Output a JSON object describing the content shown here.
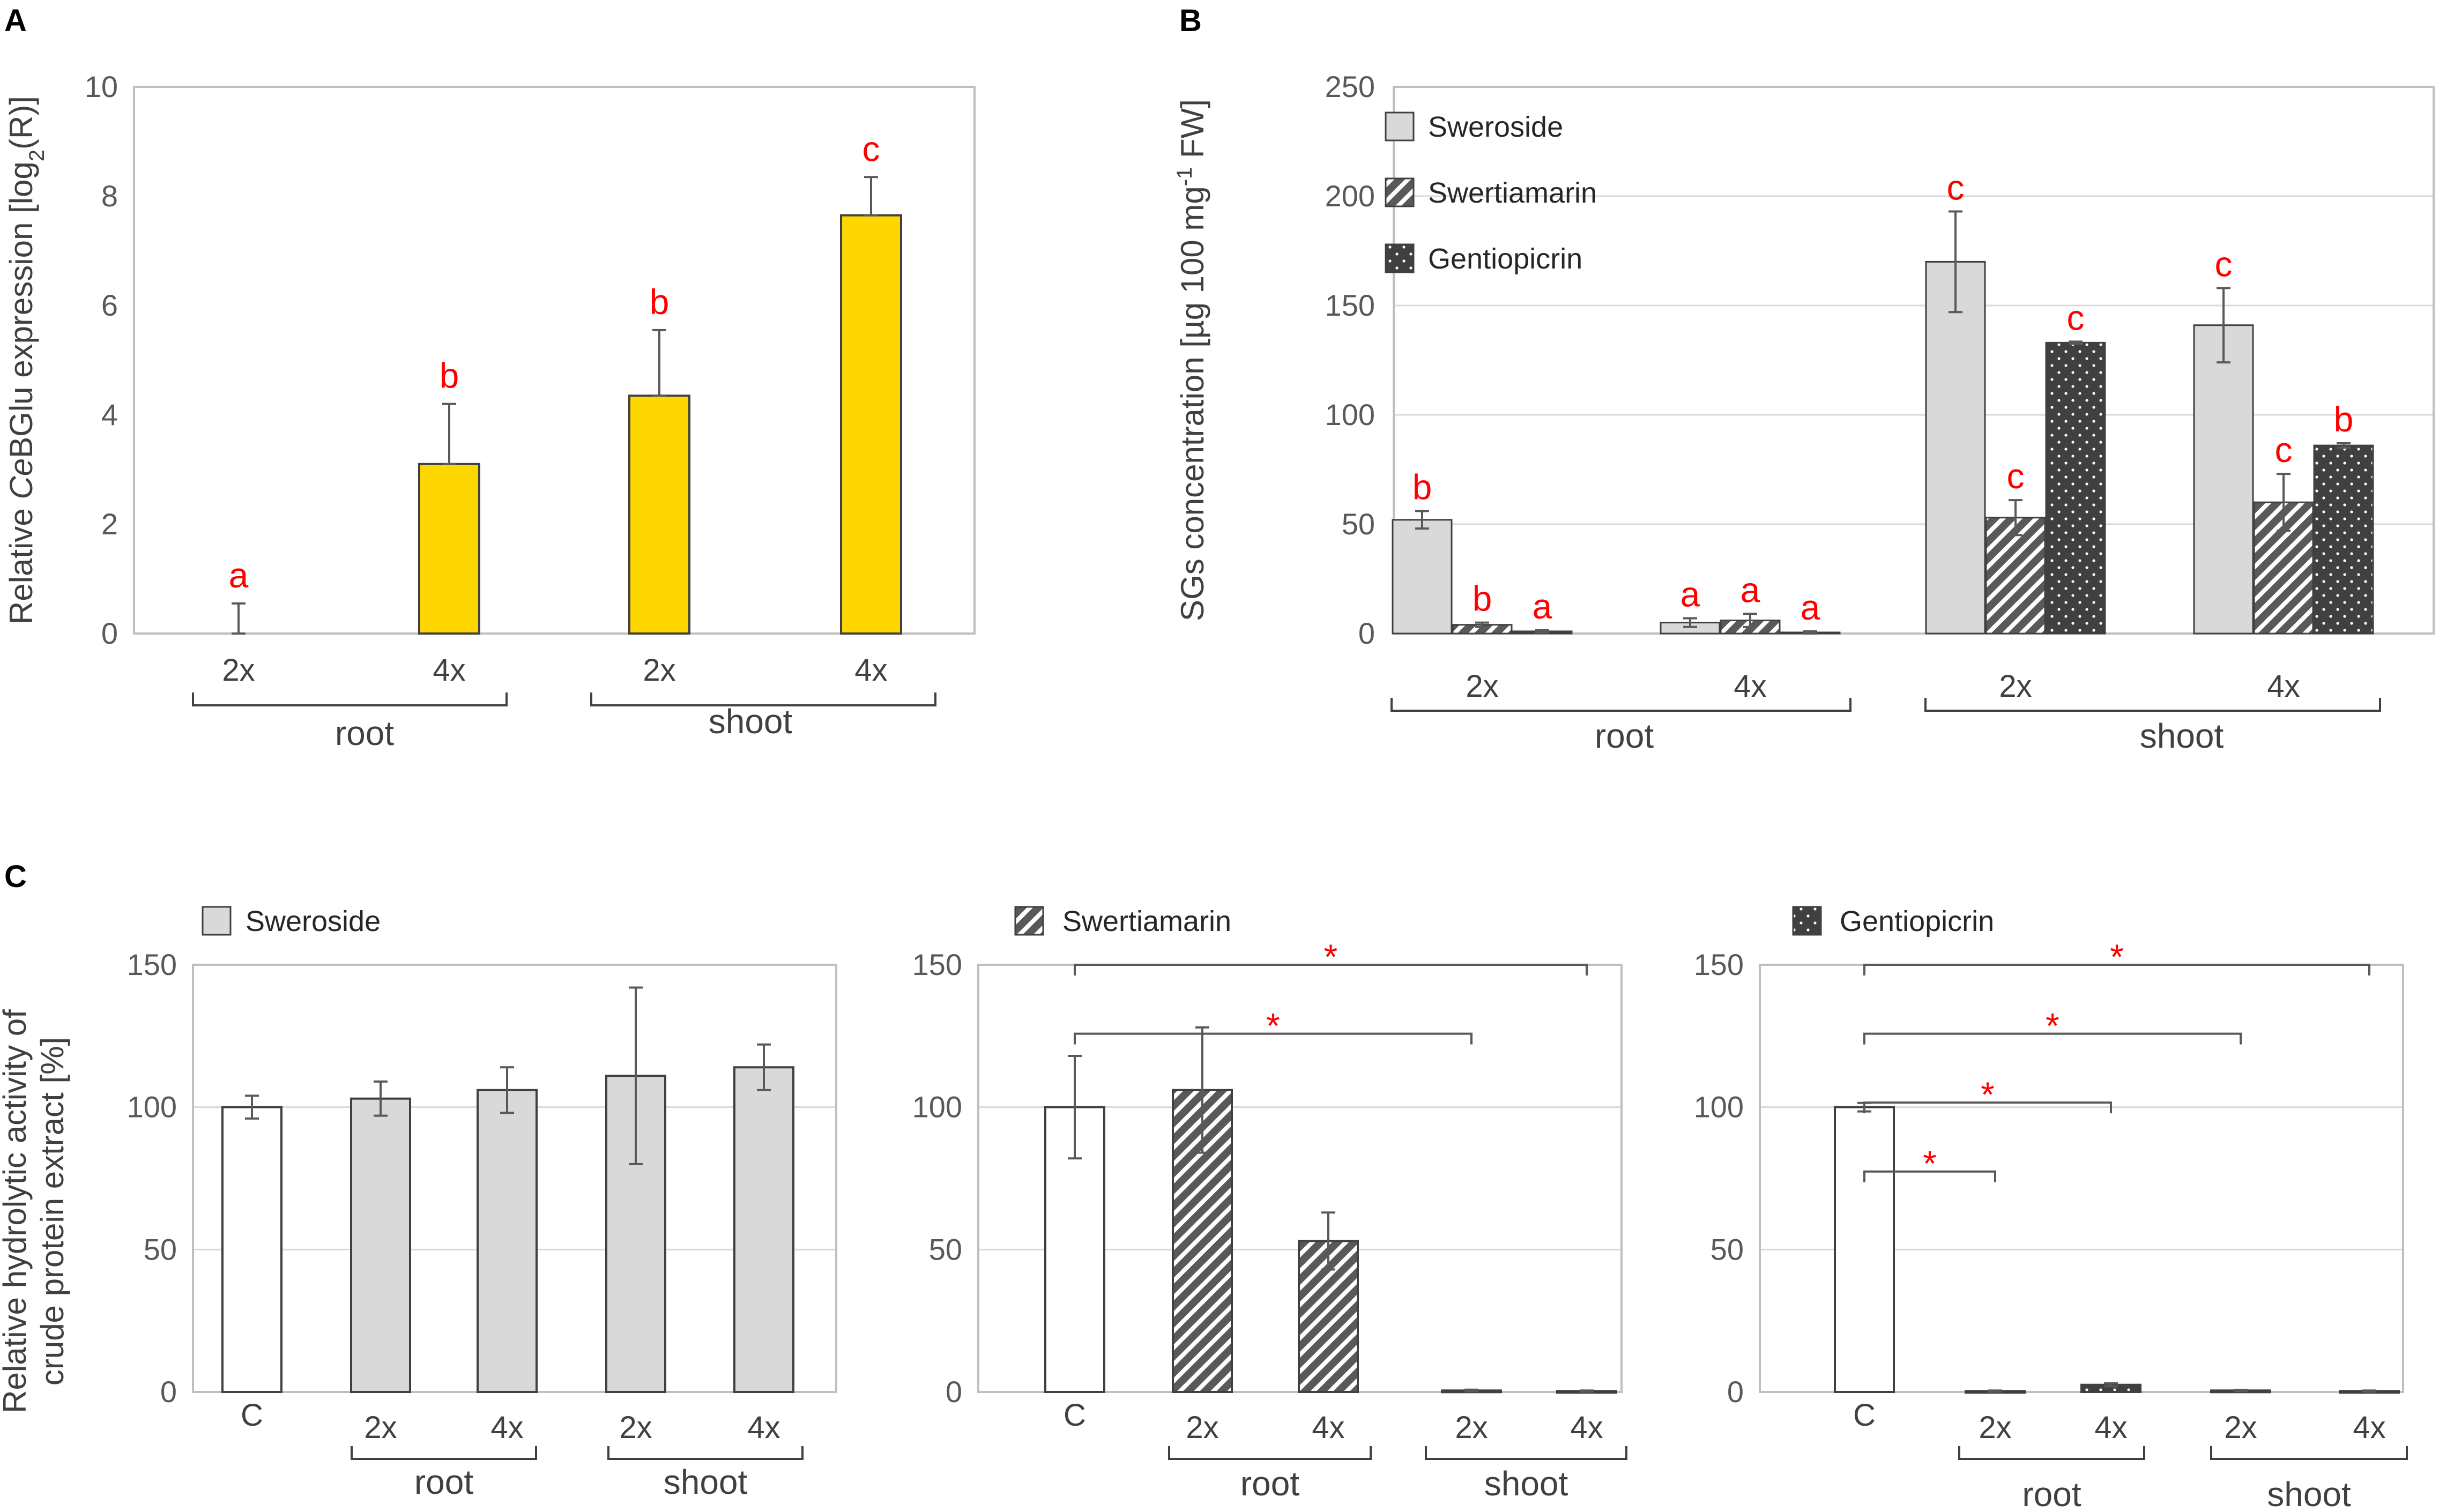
{
  "colors": {
    "yellow": "#FFD700",
    "light_gray": "#D9D9D9",
    "dark_gray": "#595959",
    "white": "#FFFFFF",
    "sig_red": "#FF0000",
    "axis": "#A6A6A6",
    "grid": "#D9D9D9"
  },
  "chart_data": [
    {
      "panel": "A",
      "type": "bar",
      "ylabel_prefix": "Relative ",
      "ylabel_italic": "Ce",
      "ylabel_mid": "BGlu expression [log",
      "ylabel_sub": "2",
      "ylabel_suffix": "(R)]",
      "ylim": [
        0,
        10
      ],
      "yticks": [
        "0",
        "2",
        "4",
        "6",
        "8",
        "10"
      ],
      "grid": false,
      "categories": [
        "2x",
        "4x",
        "2x",
        "4x"
      ],
      "groups": [
        "root",
        "shoot"
      ],
      "series": [
        {
          "name": "CeBGlu",
          "values": [
            0,
            3.1,
            4.35,
            7.65
          ],
          "errors": [
            0.55,
            1.1,
            1.2,
            0.7
          ],
          "labels": [
            "a",
            "b",
            "b",
            "c"
          ]
        }
      ]
    },
    {
      "panel": "B",
      "type": "bar",
      "ylabel_main": "SGs concentration [µg 100 mg",
      "ylabel_sup": "-1",
      "ylabel_end": " FW]",
      "ylim": [
        0,
        250
      ],
      "yticks": [
        "0",
        "50",
        "100",
        "150",
        "200",
        "250"
      ],
      "grid": true,
      "categories": [
        "2x",
        "4x",
        "2x",
        "4x"
      ],
      "groups": [
        "root",
        "shoot"
      ],
      "legend": [
        "Sweroside",
        "Swertiamarin",
        "Gentiopicrin"
      ],
      "series": [
        {
          "name": "Sweroside",
          "values": [
            52,
            5,
            170,
            141
          ],
          "errors": [
            4,
            2,
            23,
            17
          ],
          "labels": [
            "b",
            "a",
            "c",
            "c"
          ]
        },
        {
          "name": "Swertiamarin",
          "values": [
            4,
            6,
            53,
            60
          ],
          "errors": [
            1,
            3,
            8,
            13
          ],
          "labels": [
            "b",
            "a",
            "c",
            "c"
          ]
        },
        {
          "name": "Gentiopicrin",
          "values": [
            1,
            0.5,
            133,
            86
          ],
          "errors": [
            0.5,
            0.5,
            0.5,
            1
          ],
          "labels": [
            "a",
            "a",
            "c",
            "b"
          ]
        }
      ]
    },
    {
      "panel": "C",
      "ylabel_line1": "Relative hydrolytic activity of",
      "ylabel_line2": "crude protein extract [%]",
      "subcharts": [
        {
          "type": "bar",
          "legend": "Sweroside",
          "ylim": [
            0,
            150
          ],
          "yticks": [
            "0",
            "50",
            "100",
            "150"
          ],
          "grid": true,
          "categories": [
            "C",
            "2x",
            "4x",
            "2x",
            "4x"
          ],
          "groups": [
            "root",
            "shoot"
          ],
          "values": [
            100,
            103,
            106,
            111,
            114
          ],
          "errors": [
            4,
            6,
            8,
            31,
            8
          ],
          "significance": []
        },
        {
          "type": "bar",
          "legend": "Swertiamarin",
          "ylim": [
            0,
            150
          ],
          "yticks": [
            "0",
            "50",
            "100",
            "150"
          ],
          "grid": true,
          "categories": [
            "C",
            "2x",
            "4x",
            "2x",
            "4x"
          ],
          "groups": [
            "root",
            "shoot"
          ],
          "values": [
            100,
            106,
            53,
            0.5,
            0.3
          ],
          "errors": [
            18,
            22,
            10,
            0.3,
            0.2
          ],
          "significance": [
            {
              "from": 0,
              "to": 4,
              "label": "*"
            },
            {
              "from": 0,
              "to": 3,
              "label": "*"
            }
          ]
        },
        {
          "type": "bar",
          "legend": "Gentiopicrin",
          "ylim": [
            0,
            150
          ],
          "yticks": [
            "0",
            "50",
            "100",
            "150"
          ],
          "grid": true,
          "categories": [
            "C",
            "2x",
            "4x",
            "2x",
            "4x"
          ],
          "groups": [
            "root",
            "shoot"
          ],
          "values": [
            100,
            0.3,
            2.5,
            0.5,
            0.3
          ],
          "errors": [
            1.5,
            0.2,
            0.5,
            0.2,
            0.2
          ],
          "significance": [
            {
              "from": 0,
              "to": 4,
              "label": "*"
            },
            {
              "from": 0,
              "to": 3,
              "label": "*"
            },
            {
              "from": 0,
              "to": 2,
              "label": "*"
            },
            {
              "from": 0,
              "to": 1,
              "label": "*"
            }
          ]
        }
      ]
    }
  ]
}
